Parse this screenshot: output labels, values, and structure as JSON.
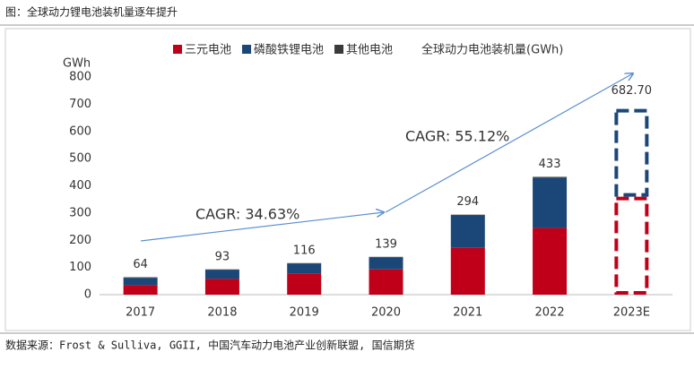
{
  "figure_title": "图：全球动力锂电池装机量逐年提升",
  "source": "数据来源：Frost & Sulliva, GGII, 中国汽车动力电池产业创新联盟, 国信期货",
  "chart_data": {
    "type": "stacked_bar",
    "y_unit": "GWh",
    "categories": [
      "2017",
      "2018",
      "2019",
      "2020",
      "2021",
      "2022",
      "2023E"
    ],
    "series": [
      {
        "name": "三元电池",
        "color": "#c00018",
        "values": [
          35,
          58,
          78,
          93,
          172,
          245,
          360
        ]
      },
      {
        "name": "磷酸铁锂电池",
        "color": "#1b4778",
        "values": [
          27,
          33,
          36,
          43,
          118,
          184,
          322.7
        ]
      },
      {
        "name": "其他电池",
        "color": "#3a3a3a",
        "values": [
          2,
          2,
          2,
          3,
          4,
          4,
          null
        ]
      }
    ],
    "totals": {
      "name": "全球动力电池装机量(GWh)",
      "values": [
        64,
        93,
        116,
        139,
        294,
        433,
        682.7
      ],
      "value_labels": [
        "64",
        "93",
        "116",
        "139",
        "294",
        "433",
        "682.70"
      ]
    },
    "dashed_categories": [
      "2023E"
    ],
    "annotations": [
      "CAGR: 34.63%",
      "CAGR: 55.12%"
    ],
    "ylim": [
      0,
      800
    ],
    "yticks": [
      0,
      100,
      200,
      300,
      400,
      500,
      600,
      700,
      800
    ],
    "grid": false
  }
}
